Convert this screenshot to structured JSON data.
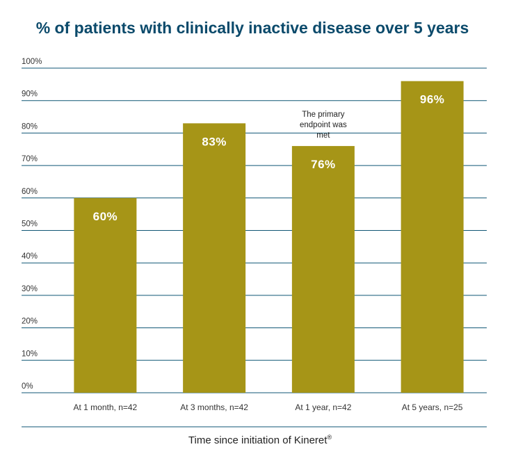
{
  "chart_data": {
    "type": "bar",
    "title": "% of patients with clinically inactive disease over 5 years",
    "xlabel": "Time since initiation of Kineret",
    "xlabel_sup": "®",
    "ylabel": "",
    "ylim": [
      0,
      100
    ],
    "yticks": [
      "100%",
      "90%",
      "80%",
      "70%",
      "60%",
      "50%",
      "40%",
      "30%",
      "20%",
      "10%",
      "0%"
    ],
    "grid": true,
    "categories": [
      "At 1 month, n=42",
      "At 3 months, n=42",
      "At 1 year, n=42",
      "At 5 years, n=25"
    ],
    "values": [
      60,
      83,
      76,
      96
    ],
    "value_labels": [
      "60%",
      "83%",
      "76%",
      "96%"
    ],
    "annotation": {
      "category_index": 2,
      "lines": [
        "The primary",
        "endpoint was",
        "met"
      ]
    },
    "colors": {
      "bar": "#a69517",
      "title": "#0b4a6b",
      "grid": "#0f5674",
      "value_label": "#ffffff"
    }
  }
}
